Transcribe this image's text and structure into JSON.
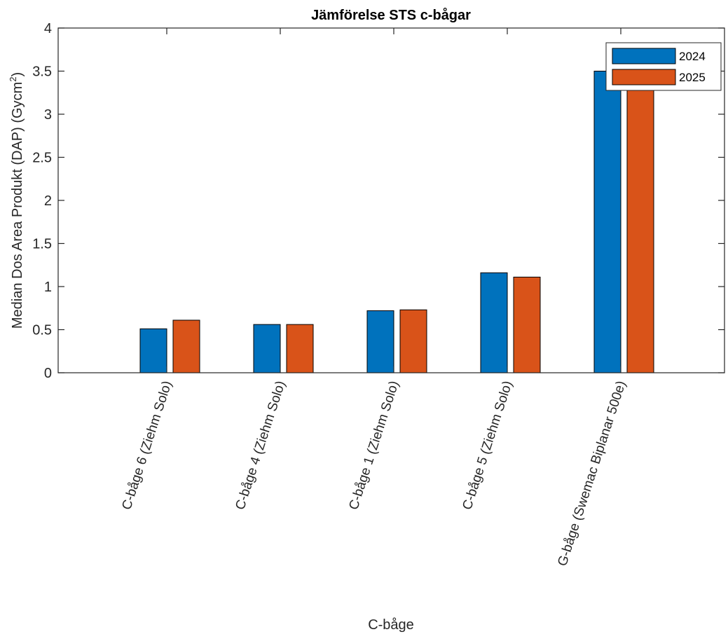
{
  "chart_data": {
    "type": "bar",
    "title": "Jämförelse STS c-bågar",
    "xlabel": "C-båge",
    "ylabel_main": "Median Dos Area Produkt (DAP) (Gycm",
    "ylabel_sup": "2",
    "ylabel_end": ")",
    "categories": [
      "C-båge 6 (Ziehm Solo)",
      "C-båge 4 (Ziehm Solo)",
      "C-båge 1 (Ziehm Solo)",
      "C-båge 5 (Ziehm Solo)",
      "G-båge (Swemac Biplanar 500e)"
    ],
    "series": [
      {
        "name": "2024",
        "color": "#0072BD",
        "values": [
          0.51,
          0.56,
          0.72,
          1.16,
          3.5
        ]
      },
      {
        "name": "2025",
        "color": "#D95319",
        "values": [
          0.61,
          0.56,
          0.73,
          1.11,
          3.44
        ]
      }
    ],
    "ylim": [
      0,
      4
    ],
    "yticks": [
      "0",
      "0.5",
      "1",
      "1.5",
      "2",
      "2.5",
      "3",
      "3.5",
      "4"
    ],
    "grid": false,
    "legend_position": "top-right"
  }
}
